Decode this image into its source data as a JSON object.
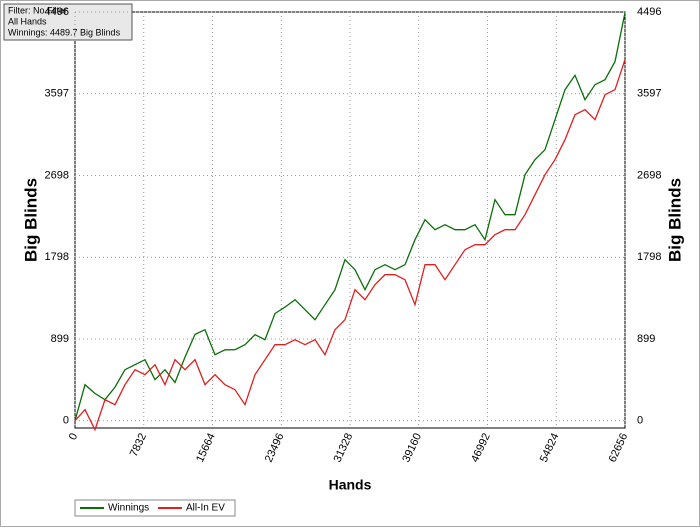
{
  "chart_data": {
    "type": "line",
    "info": [
      "Filter: No Filter",
      "All Hands",
      "Winnings: 4489.7 Big Blinds"
    ],
    "xlabel": "Hands",
    "ylabel": "Big Blinds",
    "x": [
      0,
      1139,
      2278,
      3418,
      4557,
      5696,
      6835,
      7974,
      9114,
      10253,
      11392,
      12531,
      13670,
      14810,
      15949,
      17088,
      18227,
      19366,
      20506,
      21645,
      22784,
      23923,
      25062,
      26202,
      27341,
      28480,
      29619,
      30758,
      31898,
      33037,
      34176,
      35315,
      36454,
      37594,
      38733,
      39872,
      41011,
      42150,
      43290,
      44429,
      45568,
      46707,
      47846,
      48986,
      50125,
      51264,
      52403,
      53542,
      54682,
      55821,
      56960,
      58099,
      59238,
      60378,
      61517,
      62656
    ],
    "series": [
      {
        "name": "Winnings",
        "color": "#0a6e0a",
        "values": [
          0,
          396,
          300,
          231,
          370,
          561,
          616,
          671,
          451,
          561,
          420,
          700,
          950,
          1001,
          726,
          780,
          781,
          836,
          946,
          891,
          1180,
          1250,
          1331,
          1221,
          1111,
          1276,
          1441,
          1771,
          1661,
          1441,
          1661,
          1716,
          1661,
          1716,
          1991,
          2211,
          2101,
          2156,
          2101,
          2101,
          2156,
          1991,
          2431,
          2266,
          2266,
          2706,
          2871,
          2981,
          3311,
          3641,
          3800,
          3531,
          3696,
          3751,
          3950,
          4489.7
        ]
      },
      {
        "name": "All-In EV",
        "color": "#e02020",
        "values": [
          0,
          121,
          -99,
          231,
          176,
          396,
          561,
          506,
          616,
          396,
          671,
          561,
          671,
          396,
          506,
          396,
          341,
          176,
          506,
          671,
          836,
          836,
          891,
          836,
          891,
          726,
          1001,
          1111,
          1441,
          1331,
          1496,
          1606,
          1606,
          1551,
          1276,
          1716,
          1716,
          1551,
          1716,
          1881,
          1936,
          1936,
          2046,
          2101,
          2101,
          2266,
          2486,
          2706,
          2871,
          3091,
          3366,
          3421,
          3311,
          3586,
          3641,
          3971
        ]
      }
    ],
    "xlim": [
      0,
      62656
    ],
    "xticks": [
      0,
      7832,
      15664,
      23496,
      31328,
      39160,
      46992,
      54824,
      62656
    ],
    "ylim": [
      -80,
      4496
    ],
    "yticks": [
      0,
      899,
      1798,
      2698,
      3597,
      4496
    ],
    "grid": true
  }
}
